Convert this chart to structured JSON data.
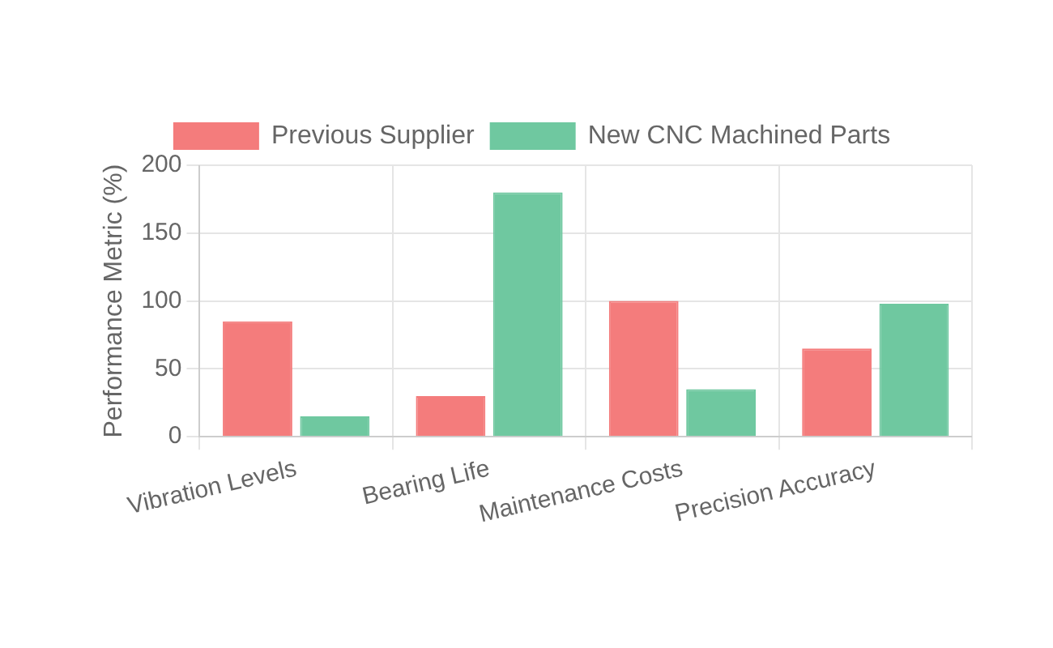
{
  "chart_data": {
    "type": "bar",
    "ylabel": "Performance Metric (%)",
    "categories": [
      "Vibration Levels",
      "Bearing Life",
      "Maintenance Costs",
      "Precision Accuracy"
    ],
    "series": [
      {
        "name": "Previous Supplier",
        "color": "#f47c7c",
        "values": [
          85,
          30,
          100,
          65
        ]
      },
      {
        "name": "New CNC Machined Parts",
        "color": "#6fc8a0",
        "values": [
          15,
          180,
          35,
          98
        ]
      }
    ],
    "ylim": [
      0,
      200
    ],
    "yticks": [
      0,
      50,
      100,
      150,
      200
    ],
    "grid": true,
    "legend": "top"
  }
}
